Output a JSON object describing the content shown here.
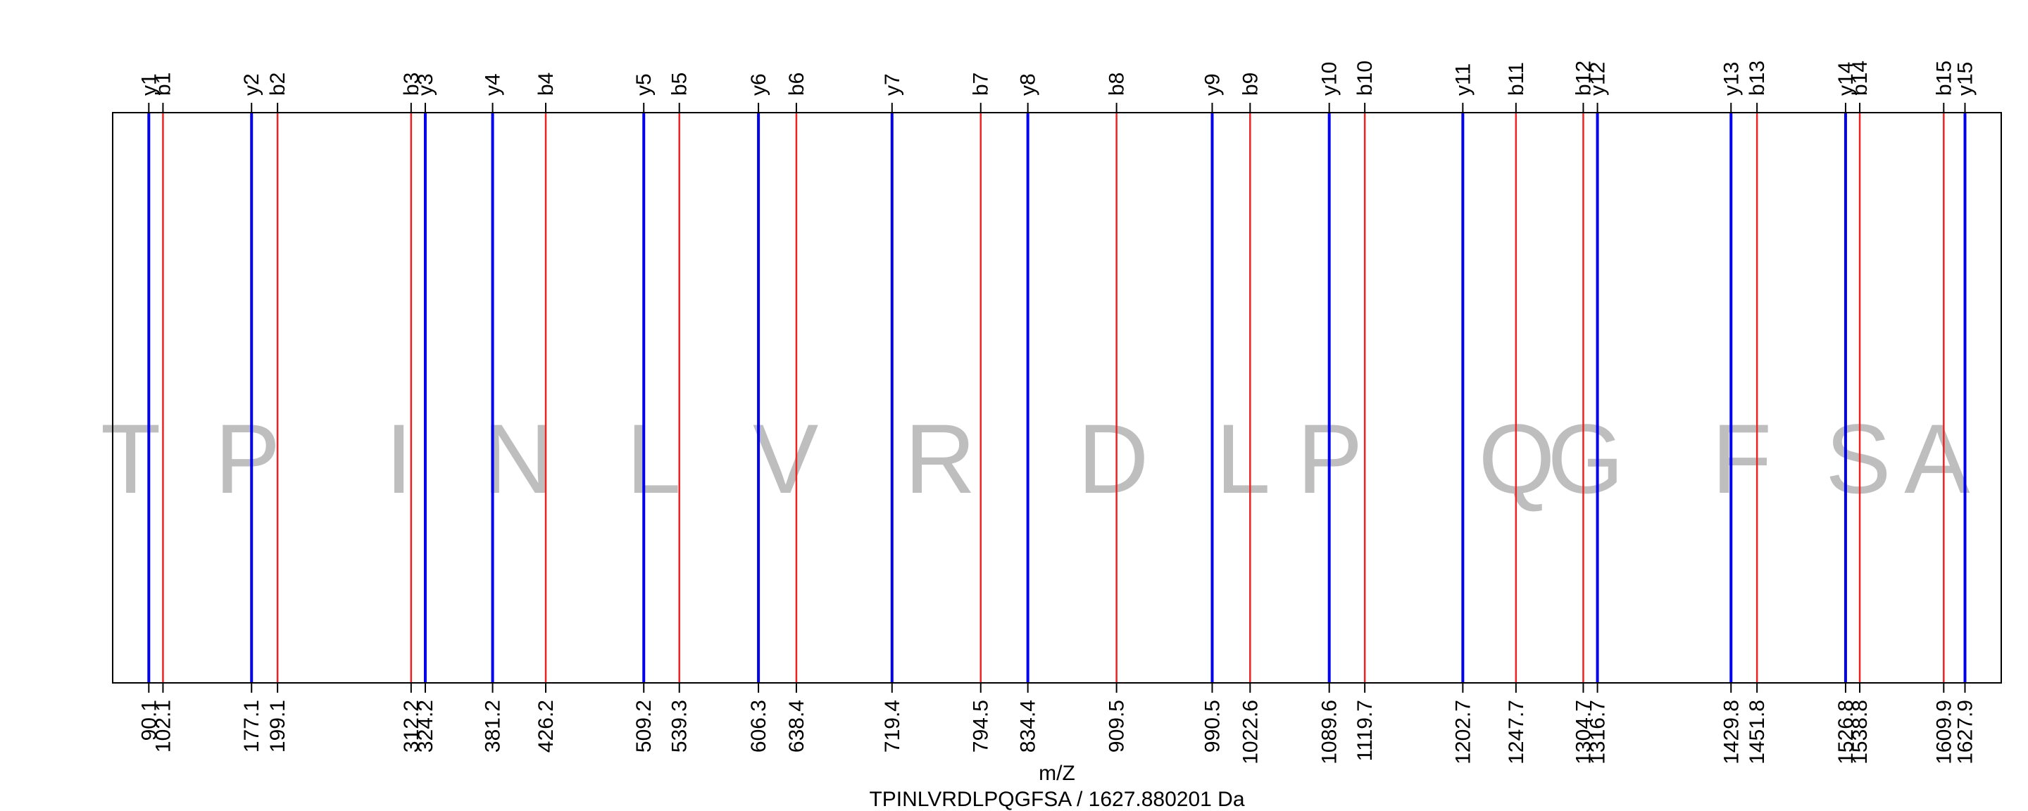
{
  "chart_data": {
    "type": "line",
    "title": "TPINLVRDLPQGFSA / 1627.880201 Da",
    "xlabel": "m/Z",
    "ylabel": "",
    "xlim": [
      59.5,
      1658.6
    ],
    "grid": false,
    "colors": {
      "y_ions": "#0000ee",
      "b_ions": "#ee2222",
      "residue": "#bebebe",
      "frame": "#000000"
    },
    "residues": [
      {
        "letter": "T",
        "x": 74.8
      },
      {
        "letter": "P",
        "x": 173.7
      },
      {
        "letter": "I",
        "x": 301.9
      },
      {
        "letter": "N",
        "x": 403.1
      },
      {
        "letter": "L",
        "x": 517.6
      },
      {
        "letter": "V",
        "x": 629.3
      },
      {
        "letter": "R",
        "x": 760.1
      },
      {
        "letter": "D",
        "x": 906.7
      },
      {
        "letter": "L",
        "x": 1016.7
      },
      {
        "letter": "P",
        "x": 1090.2
      },
      {
        "letter": "Q",
        "x": 1248.4
      },
      {
        "letter": "G",
        "x": 1306.7
      },
      {
        "letter": "F",
        "x": 1438.9
      },
      {
        "letter": "S",
        "x": 1537.5
      },
      {
        "letter": "A",
        "x": 1604.3
      }
    ],
    "series": [
      {
        "name": "y",
        "ions": [
          {
            "label": "y1",
            "mz": 90.1,
            "mz_label": "90.1"
          },
          {
            "label": "y2",
            "mz": 177.1,
            "mz_label": "177.1"
          },
          {
            "label": "y3",
            "mz": 324.2,
            "mz_label": "324.2"
          },
          {
            "label": "y4",
            "mz": 381.2,
            "mz_label": "381.2"
          },
          {
            "label": "y5",
            "mz": 509.2,
            "mz_label": "509.2"
          },
          {
            "label": "y6",
            "mz": 606.3,
            "mz_label": "606.3"
          },
          {
            "label": "y7",
            "mz": 719.4,
            "mz_label": "719.4"
          },
          {
            "label": "y8",
            "mz": 834.4,
            "mz_label": "834.4"
          },
          {
            "label": "y9",
            "mz": 990.5,
            "mz_label": "990.5"
          },
          {
            "label": "y10",
            "mz": 1089.6,
            "mz_label": "1089.6"
          },
          {
            "label": "y11",
            "mz": 1202.7,
            "mz_label": "1202.7"
          },
          {
            "label": "y12",
            "mz": 1316.7,
            "mz_label": "1316.7"
          },
          {
            "label": "y13",
            "mz": 1429.8,
            "mz_label": "1429.8"
          },
          {
            "label": "y14",
            "mz": 1526.8,
            "mz_label": "1526.8"
          },
          {
            "label": "y15",
            "mz": 1627.9,
            "mz_label": "1627.9"
          }
        ]
      },
      {
        "name": "b",
        "ions": [
          {
            "label": "b1",
            "mz": 102.1,
            "mz_label": "102.1"
          },
          {
            "label": "b2",
            "mz": 199.1,
            "mz_label": "199.1"
          },
          {
            "label": "b3",
            "mz": 312.2,
            "mz_label": "312.2"
          },
          {
            "label": "b4",
            "mz": 426.2,
            "mz_label": "426.2"
          },
          {
            "label": "b5",
            "mz": 539.3,
            "mz_label": "539.3"
          },
          {
            "label": "b6",
            "mz": 638.4,
            "mz_label": "638.4"
          },
          {
            "label": "b7",
            "mz": 794.5,
            "mz_label": "794.5"
          },
          {
            "label": "b8",
            "mz": 909.5,
            "mz_label": "909.5"
          },
          {
            "label": "b9",
            "mz": 1022.6,
            "mz_label": "1022.6"
          },
          {
            "label": "b10",
            "mz": 1119.7,
            "mz_label": "1119.7"
          },
          {
            "label": "b11",
            "mz": 1247.7,
            "mz_label": "1247.7"
          },
          {
            "label": "b12",
            "mz": 1304.7,
            "mz_label": "1304.7"
          },
          {
            "label": "b13",
            "mz": 1451.8,
            "mz_label": "1451.8"
          },
          {
            "label": "b14",
            "mz": 1538.8,
            "mz_label": "1538.8"
          },
          {
            "label": "b15",
            "mz": 1609.9,
            "mz_label": "1609.9"
          }
        ]
      }
    ]
  }
}
